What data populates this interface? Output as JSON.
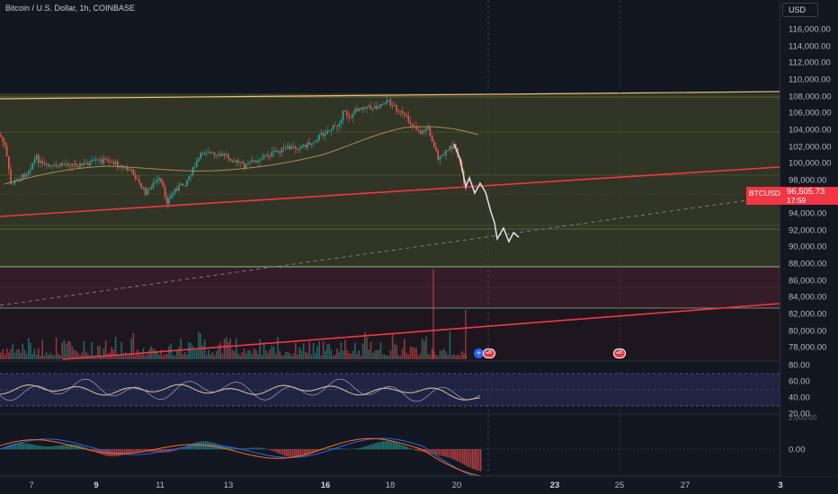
{
  "header": {
    "symbol_title": "Bitcoin / U.S. Dollar, 1h, COINBASE",
    "currency_button": "USD"
  },
  "price_tag": {
    "symbol": "BTCUSD",
    "price": "96,505.73",
    "countdown": "17:59",
    "color": "#f23645"
  },
  "price_axis": [
    "116,000.00",
    "114,000.00",
    "112,000.00",
    "110,000.00",
    "108,000.00",
    "106,000.00",
    "104,000.00",
    "102,000.00",
    "100,000.00",
    "98,000.00",
    "94,000.00",
    "92,000.00",
    "90,000.00",
    "88,000.00",
    "86,000.00",
    "84,000.00",
    "82,000.00",
    "80,000.00",
    "78,000.00"
  ],
  "oscillator_axis": [
    "80.00",
    "60.00",
    "40.00",
    "20.00"
  ],
  "oscillator_axis_cut": "2,000.00",
  "macd_axis": [
    "0.00"
  ],
  "time_axis": [
    {
      "label": "7",
      "bold": false
    },
    {
      "label": "9",
      "bold": true
    },
    {
      "label": "11",
      "bold": false
    },
    {
      "label": "13",
      "bold": false
    },
    {
      "label": "16",
      "bold": true
    },
    {
      "label": "18",
      "bold": false
    },
    {
      "label": "20",
      "bold": false
    },
    {
      "label": "23",
      "bold": true
    },
    {
      "label": "25",
      "bold": false
    },
    {
      "label": "27",
      "bold": false
    },
    {
      "label": "3",
      "bold": true
    }
  ],
  "event_badges": [
    {
      "icon": "flag-us-icon"
    },
    {
      "icon": "flag-us-icon"
    }
  ],
  "plus_button": "+",
  "colors": {
    "background": "#131722",
    "bull": "#26a69a",
    "bear": "#ef5350",
    "range_fill": "#3b3f25",
    "lower_fill": "#3a1e2a",
    "trendline": "#f23645",
    "channel_top": "#e8c77a",
    "projection": "#e0e3eb"
  }
}
